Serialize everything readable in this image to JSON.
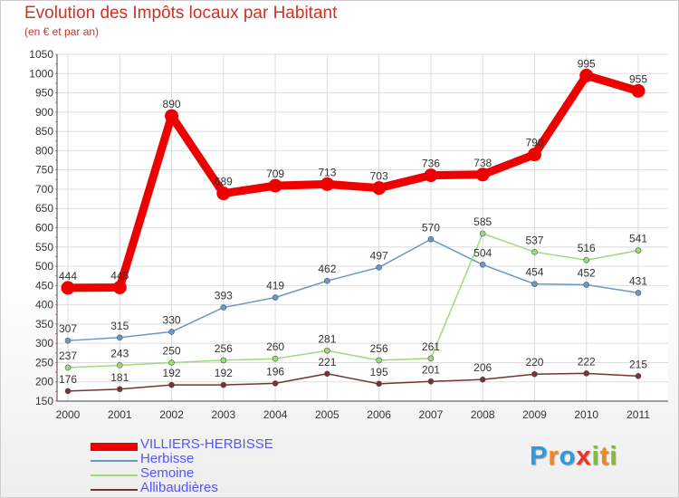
{
  "title": "Evolution des Impôts locaux par Habitant",
  "subtitle": "(en € et par an)",
  "brand": {
    "letters": [
      "P",
      "r",
      "o",
      "x",
      "i",
      "t",
      "i"
    ],
    "colors": [
      "#3399dd",
      "#ee8822",
      "#3399dd",
      "#ee3322",
      "#88bb33",
      "#ee8822",
      "#88bb33"
    ]
  },
  "chart_data": {
    "type": "line",
    "x": [
      "2000",
      "2001",
      "2002",
      "2003",
      "2004",
      "2005",
      "2006",
      "2007",
      "2008",
      "2009",
      "2010",
      "2011"
    ],
    "ylim": [
      150,
      1050
    ],
    "yticks": [
      150,
      200,
      250,
      300,
      350,
      400,
      450,
      500,
      550,
      600,
      650,
      700,
      750,
      800,
      850,
      900,
      950,
      1000,
      1050
    ],
    "grid": true,
    "legend_position": "bottom-left",
    "series": [
      {
        "name": "VILLIERS-HERBISSE",
        "color": "#ee0000",
        "width": 9,
        "marker": 7,
        "values": [
          444,
          445,
          890,
          689,
          709,
          713,
          703,
          736,
          738,
          790,
          995,
          955
        ],
        "labels": [
          "444",
          "445",
          "890",
          "689",
          "709",
          "713",
          "703",
          "736",
          "738",
          "790",
          "995",
          "955"
        ]
      },
      {
        "name": "Herbisse",
        "color": "#6699cc",
        "width": 1.5,
        "marker": 3,
        "values": [
          307,
          315,
          330,
          393,
          419,
          462,
          497,
          570,
          504,
          454,
          452,
          431
        ],
        "labels": [
          "307",
          "315",
          "330",
          "393",
          "419",
          "462",
          "497",
          "570",
          "504",
          "454",
          "452",
          "431"
        ]
      },
      {
        "name": "Semoine",
        "color": "#99dd77",
        "width": 1.5,
        "marker": 3,
        "values": [
          237,
          243,
          250,
          256,
          260,
          281,
          256,
          261,
          585,
          537,
          516,
          541
        ],
        "labels": [
          "237",
          "243",
          "250",
          "256",
          "260",
          "281",
          "256",
          "261",
          "585",
          "537",
          "516",
          "541"
        ]
      },
      {
        "name": "Allibaudières",
        "color": "#773333",
        "width": 1.5,
        "marker": 3,
        "values": [
          176,
          181,
          192,
          192,
          196,
          221,
          195,
          201,
          206,
          220,
          222,
          215
        ],
        "labels": [
          "176",
          "181",
          "192",
          "192",
          "196",
          "221",
          "195",
          "201",
          "206",
          "220",
          "222",
          "215"
        ]
      }
    ]
  }
}
